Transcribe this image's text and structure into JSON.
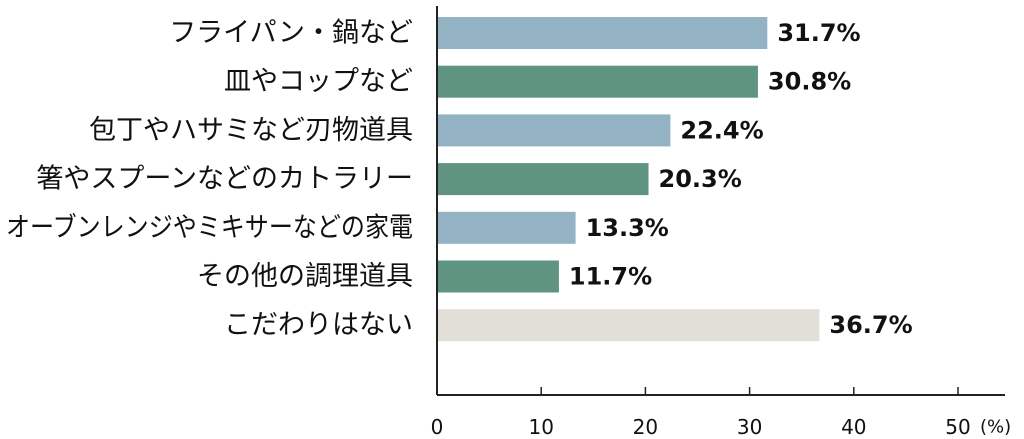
{
  "chart_data": {
    "type": "bar",
    "orientation": "horizontal",
    "categories": [
      "フライパン・鍋など",
      "皿やコップなど",
      "包丁やハサミなど刃物道具",
      "箸やスプーンなどのカトラリー",
      "オーブンレンジやミキサーなどの家電",
      "その他の調理道具",
      "こだわりはない"
    ],
    "values": [
      31.7,
      30.8,
      22.4,
      20.3,
      13.3,
      11.7,
      36.7
    ],
    "value_labels": [
      "31.7%",
      "30.8%",
      "22.4%",
      "20.3%",
      "13.3%",
      "11.7%",
      "36.7%"
    ],
    "bar_colors": [
      "#93b2c4",
      "#5f9480",
      "#93b2c4",
      "#5f9480",
      "#93b2c4",
      "#5f9480",
      "#e2dfd9"
    ],
    "xlim": [
      0,
      55
    ],
    "xticks": [
      0,
      10,
      20,
      30,
      40,
      50
    ],
    "xtick_labels": [
      "0",
      "10",
      "20",
      "30",
      "40",
      "50"
    ],
    "unit": "(%)",
    "grid": false
  }
}
